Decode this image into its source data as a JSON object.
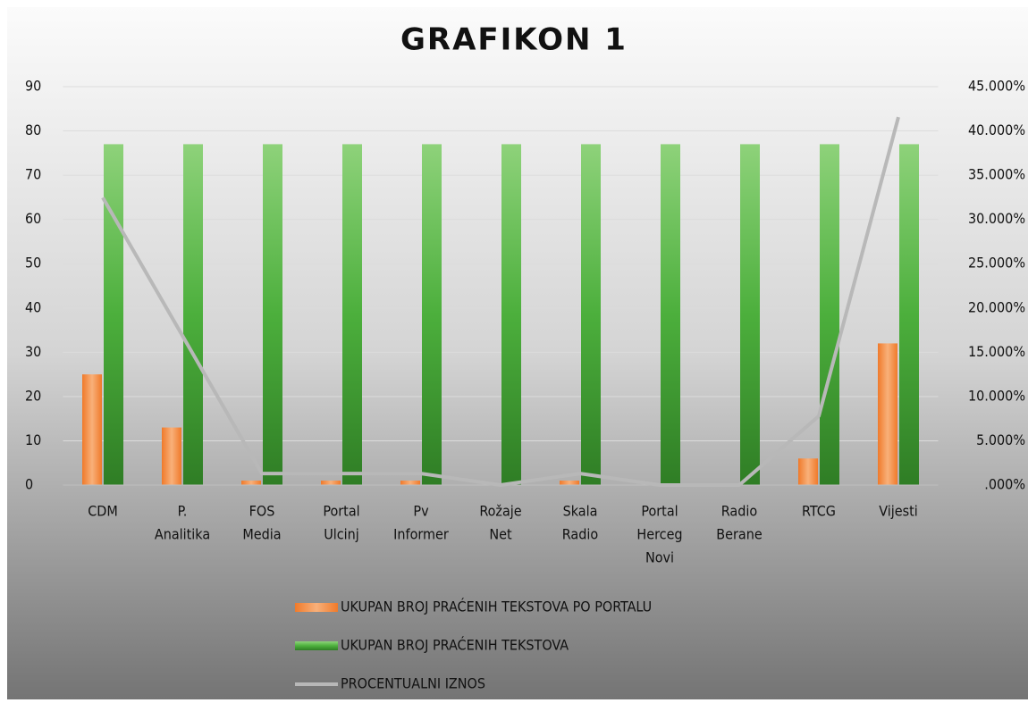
{
  "chart_data": {
    "type": "bar",
    "title": "GRAFIKON 1",
    "categories": [
      [
        "CDM"
      ],
      [
        "P.",
        "Analitika"
      ],
      [
        "FOS",
        "Media"
      ],
      [
        "Portal",
        "Ulcinj"
      ],
      [
        "Pv",
        "Informer"
      ],
      [
        "Rožaje",
        "Net"
      ],
      [
        "Skala",
        "Radio"
      ],
      [
        "Portal",
        "Herceg",
        "Novi"
      ],
      [
        "Radio",
        "Berane"
      ],
      [
        "RTCG"
      ],
      [
        "Vijesti"
      ]
    ],
    "series": [
      {
        "name": "UKUPAN BROJ PRAĆENIH TEKSTOVA PO PORTALU",
        "type": "bar",
        "color": "#f07a2a",
        "values": [
          25,
          13,
          1,
          1,
          1,
          0,
          1,
          0,
          0,
          6,
          32
        ]
      },
      {
        "name": "UKUPAN BROJ PRAĆENIH TEKSTOVA",
        "type": "bar",
        "color": "#4caf3c",
        "values": [
          77,
          77,
          77,
          77,
          77,
          77,
          77,
          77,
          77,
          77,
          77
        ]
      },
      {
        "name": "PROCENTUALNI IZNOS",
        "type": "line",
        "axis": "y2",
        "color": "#b8b8b8",
        "values": [
          32.468,
          16.883,
          1.299,
          1.299,
          1.299,
          0,
          1.299,
          0,
          0,
          7.792,
          41.558
        ]
      }
    ],
    "ylim": [
      0,
      90
    ],
    "yticks": [
      0,
      10,
      20,
      30,
      40,
      50,
      60,
      70,
      80,
      90
    ],
    "y2lim": [
      0,
      45
    ],
    "y2ticks": [
      {
        "value": 0,
        "label": ".000%"
      },
      {
        "value": 5,
        "label": "5.000%"
      },
      {
        "value": 10,
        "label": "10.000%"
      },
      {
        "value": 15,
        "label": "15.000%"
      },
      {
        "value": 20,
        "label": "20.000%"
      },
      {
        "value": 25,
        "label": "25.000%"
      },
      {
        "value": 30,
        "label": "30.000%"
      },
      {
        "value": 35,
        "label": "35.000%"
      },
      {
        "value": 40,
        "label": "40.000%"
      },
      {
        "value": 45,
        "label": "45.000%"
      }
    ],
    "grid": true,
    "legend": "bottom"
  }
}
